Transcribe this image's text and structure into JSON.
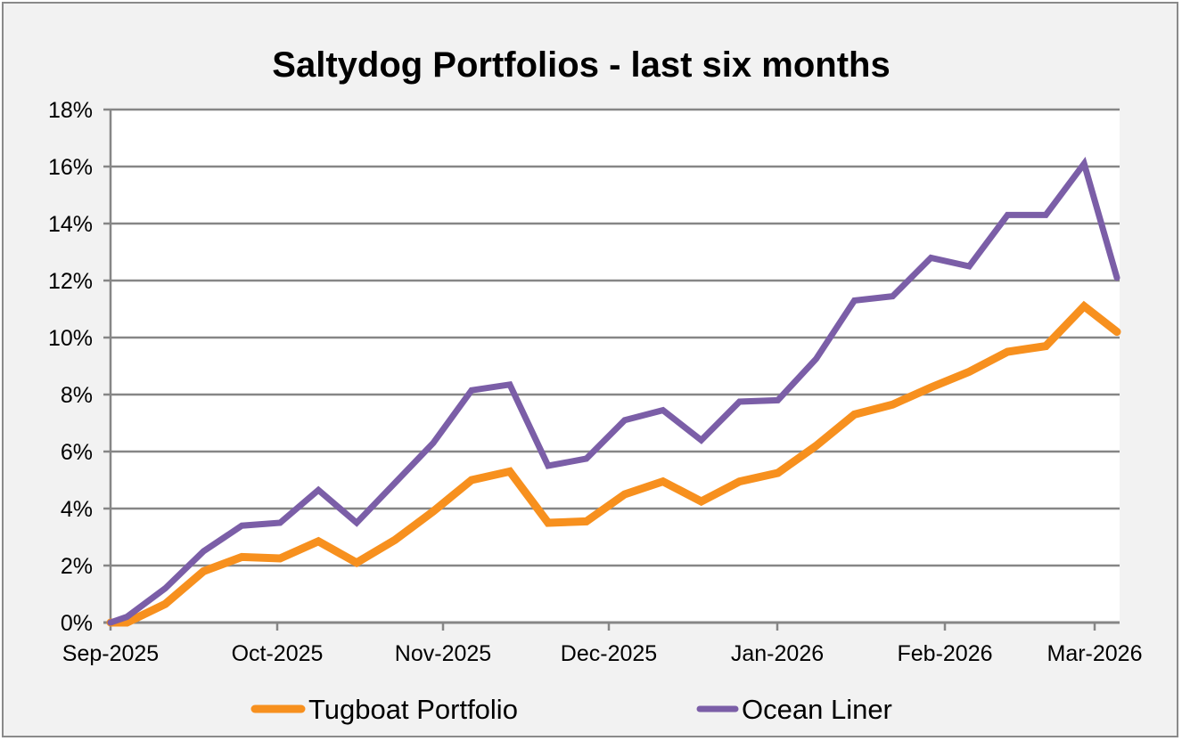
{
  "chart_data": {
    "type": "line",
    "title": "Saltydog Portfolios - last six months",
    "xlabel": "",
    "ylabel": "",
    "x_unit": "days since Sep-2025 start",
    "x_tick_labels": [
      "Sep-2025",
      "Oct-2025",
      "Nov-2025",
      "Dec-2025",
      "Jan-2026",
      "Feb-2026",
      "Mar-2026"
    ],
    "x_tick_values": [
      0,
      30,
      61,
      91,
      122,
      153,
      181
    ],
    "xlim": [
      0,
      184
    ],
    "y_tick_labels": [
      "0%",
      "2%",
      "4%",
      "6%",
      "8%",
      "10%",
      "12%",
      "14%",
      "16%",
      "18%"
    ],
    "y_tick_values": [
      0,
      2,
      4,
      6,
      8,
      10,
      12,
      14,
      16,
      18
    ],
    "ylim": [
      0,
      18
    ],
    "grid": true,
    "legend_position": "bottom",
    "x": [
      0,
      3,
      10,
      17,
      24,
      31,
      38,
      45,
      52,
      59,
      66,
      73,
      80,
      87,
      94,
      101,
      108,
      115,
      122,
      129,
      136,
      143,
      150,
      157,
      164,
      171,
      178,
      184
    ],
    "series": [
      {
        "name": "Tugboat Portfolio",
        "color": "#f7901e",
        "values": [
          0,
          0,
          0.65,
          1.8,
          2.3,
          2.25,
          2.85,
          2.1,
          2.9,
          3.9,
          5.0,
          5.3,
          3.5,
          3.55,
          4.5,
          4.95,
          4.25,
          4.95,
          5.25,
          6.2,
          7.3,
          7.65,
          8.25,
          8.8,
          9.5,
          9.7,
          11.1,
          10.2
        ]
      },
      {
        "name": "Ocean Liner",
        "color": "#7b5ea7",
        "values": [
          0,
          0.2,
          1.2,
          2.5,
          3.4,
          3.5,
          4.65,
          3.5,
          4.9,
          6.3,
          8.15,
          8.35,
          5.5,
          5.75,
          7.1,
          7.45,
          6.4,
          7.75,
          7.8,
          9.25,
          11.3,
          11.45,
          12.8,
          12.5,
          14.3,
          14.3,
          16.1,
          12.1
        ]
      }
    ]
  }
}
